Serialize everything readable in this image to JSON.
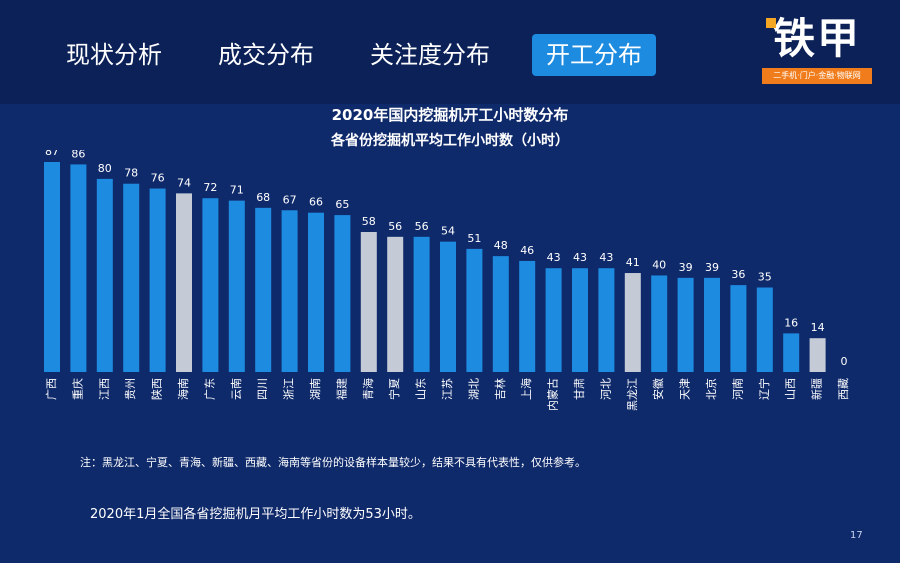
{
  "tabs": [
    {
      "label": "现状分析",
      "active": false
    },
    {
      "label": "成交分布",
      "active": false
    },
    {
      "label": "关注度分布",
      "active": false
    },
    {
      "label": "开工分布",
      "active": true
    }
  ],
  "logo": {
    "text": "铁甲",
    "slogan": "二手机·门户·金融·物联网"
  },
  "colors": {
    "bar": "#1d8be0",
    "bar_highlight": "#c5cbd6",
    "background": "#0f2a6b",
    "tab_active": "#1d8be0",
    "logo_accent": "#f07c1b"
  },
  "chart_data": {
    "type": "bar",
    "title": "2020年国内挖掘机开工小时数分布",
    "subtitle": "各省份挖掘机平均工作小时数（小时）",
    "categories": [
      "广西",
      "重庆",
      "江西",
      "贵州",
      "陕西",
      "海南",
      "广东",
      "云南",
      "四川",
      "浙江",
      "湖南",
      "福建",
      "青海",
      "宁夏",
      "山东",
      "江苏",
      "湖北",
      "吉林",
      "上海",
      "内蒙古",
      "甘肃",
      "河北",
      "黑龙江",
      "安徽",
      "天津",
      "北京",
      "河南",
      "辽宁",
      "山西",
      "新疆",
      "西藏"
    ],
    "values": [
      87,
      86,
      80,
      78,
      76,
      74,
      72,
      71,
      68,
      67,
      66,
      65,
      58,
      56,
      56,
      54,
      51,
      48,
      46,
      43,
      43,
      43,
      41,
      40,
      39,
      39,
      36,
      35,
      16,
      14,
      0
    ],
    "highlighted": [
      "海南",
      "青海",
      "宁夏",
      "黑龙江",
      "新疆"
    ],
    "ylim": [
      0,
      87
    ]
  },
  "note": "注：黑龙江、宁夏、青海、新疆、西藏、海南等省份的设备样本量较少，结果不具有代表性，仅供参考。",
  "summary": "2020年1月全国各省挖掘机月平均工作小时数为53小时。",
  "page_number": "17"
}
